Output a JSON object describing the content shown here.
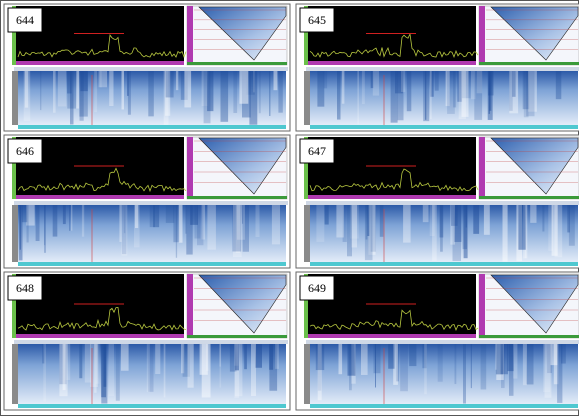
{
  "panels": [
    {
      "label": "644"
    },
    {
      "label": "645"
    },
    {
      "label": "646"
    },
    {
      "label": "647"
    },
    {
      "label": "648"
    },
    {
      "label": "649"
    }
  ]
}
